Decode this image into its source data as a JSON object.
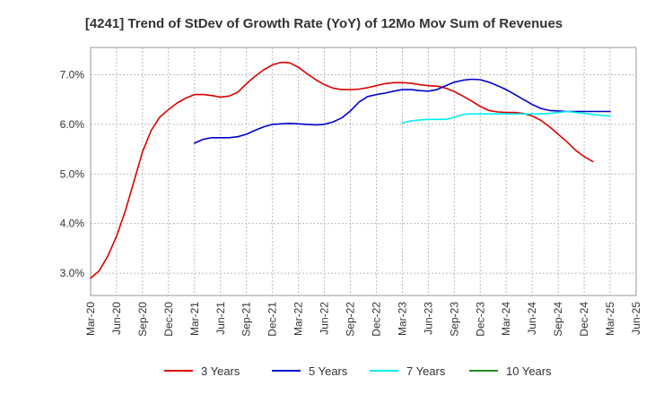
{
  "chart_data": {
    "type": "line",
    "title": "[4241]  Trend of StDev of Growth Rate (YoY) of 12Mo Mov Sum of Revenues",
    "xlabel": "",
    "ylabel": "",
    "ylim": [
      2.55,
      7.55
    ],
    "yticks": [
      3.0,
      4.0,
      5.0,
      6.0,
      7.0
    ],
    "ytick_labels": [
      "3.0%",
      "4.0%",
      "5.0%",
      "6.0%",
      "7.0%"
    ],
    "xlim": [
      0,
      63
    ],
    "xticks": [
      0,
      3,
      6,
      9,
      12,
      15,
      18,
      21,
      24,
      27,
      30,
      33,
      36,
      39,
      42,
      45,
      48,
      51,
      54,
      57,
      60,
      63
    ],
    "xtick_labels": [
      "Mar-20",
      "Jun-20",
      "Sep-20",
      "Dec-20",
      "Mar-21",
      "Jun-21",
      "Sep-21",
      "Dec-21",
      "Mar-22",
      "Jun-22",
      "Sep-22",
      "Dec-22",
      "Mar-23",
      "Jun-23",
      "Sep-23",
      "Dec-23",
      "Mar-24",
      "Jun-24",
      "Sep-24",
      "Dec-24",
      "Mar-25",
      "Jun-25"
    ],
    "grid": true,
    "legend_position": "bottom",
    "series": [
      {
        "name": "3 Years",
        "color": "#dd0000",
        "x": [
          0,
          1,
          2,
          3,
          4,
          5,
          6,
          7,
          8,
          9,
          10,
          11,
          12,
          13,
          14,
          15,
          16,
          17,
          18,
          19,
          20,
          21,
          22,
          23,
          24,
          25,
          26,
          27,
          28,
          29,
          30,
          31,
          32,
          33,
          34,
          35,
          36,
          37,
          38,
          39,
          40,
          41,
          42,
          43,
          44,
          45,
          46,
          47,
          48,
          49,
          50,
          51,
          52,
          53,
          54,
          55,
          56,
          57,
          58,
          59,
          60
        ],
        "values": [
          2.9,
          3.05,
          3.35,
          3.75,
          4.25,
          4.85,
          5.45,
          5.88,
          6.15,
          6.3,
          6.43,
          6.53,
          6.6,
          6.6,
          6.58,
          6.55,
          6.57,
          6.65,
          6.82,
          6.97,
          7.1,
          7.2,
          7.25,
          7.24,
          7.15,
          7.02,
          6.9,
          6.8,
          6.73,
          6.7,
          6.7,
          6.71,
          6.74,
          6.78,
          6.82,
          6.84,
          6.84,
          6.83,
          6.8,
          6.78,
          6.77,
          6.73,
          6.66,
          6.57,
          6.47,
          6.36,
          6.28,
          6.25,
          6.24,
          6.24,
          6.22,
          6.17,
          6.08,
          5.95,
          5.8,
          5.65,
          5.48,
          5.35,
          5.25,
          null,
          null
        ],
        "trim_end": 59
      },
      {
        "name": "5 Years",
        "color": "#0000cc",
        "x": [
          12,
          13,
          14,
          15,
          16,
          17,
          18,
          19,
          20,
          21,
          22,
          23,
          24,
          25,
          26,
          27,
          28,
          29,
          30,
          31,
          32,
          33,
          34,
          35,
          36,
          37,
          38,
          39,
          40,
          41,
          42,
          43,
          44,
          45,
          46,
          47,
          48,
          49,
          50,
          51,
          52,
          53,
          54,
          55,
          56,
          57,
          58,
          59,
          60
        ],
        "values": [
          5.62,
          5.7,
          5.73,
          5.73,
          5.73,
          5.75,
          5.8,
          5.88,
          5.95,
          6.0,
          6.01,
          6.02,
          6.01,
          6.0,
          5.99,
          6.0,
          6.05,
          6.13,
          6.27,
          6.45,
          6.56,
          6.6,
          6.63,
          6.67,
          6.7,
          6.7,
          6.68,
          6.67,
          6.7,
          6.78,
          6.85,
          6.89,
          6.91,
          6.9,
          6.85,
          6.78,
          6.7,
          6.6,
          6.5,
          6.4,
          6.32,
          6.28,
          6.27,
          6.26,
          6.26,
          6.26,
          6.26,
          6.26,
          6.26
        ]
      },
      {
        "name": "7 Years",
        "color": "#00eeee",
        "x": [
          36,
          37,
          38,
          39,
          40,
          41,
          42,
          43,
          44,
          45,
          46,
          47,
          48,
          49,
          50,
          51,
          52,
          53,
          54,
          55,
          56,
          57,
          58,
          59,
          60
        ],
        "values": [
          6.03,
          6.07,
          6.09,
          6.1,
          6.1,
          6.1,
          6.14,
          6.2,
          6.21,
          6.21,
          6.21,
          6.21,
          6.21,
          6.21,
          6.21,
          6.21,
          6.21,
          6.22,
          6.24,
          6.26,
          6.24,
          6.22,
          6.2,
          6.18,
          6.17
        ]
      },
      {
        "name": "10 Years",
        "color": "#228822",
        "x": [],
        "values": []
      }
    ]
  }
}
